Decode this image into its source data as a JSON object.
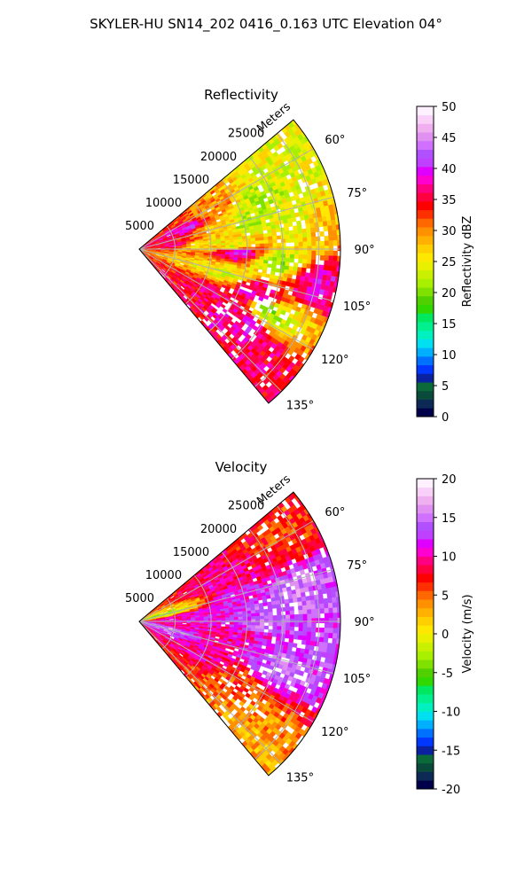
{
  "title": "SKYLER-HU  SN14_202  0416_0.163 UTC Elevation 04°",
  "chart_data": [
    {
      "type": "heatmap",
      "subtype": "polar-sector (PPI radar)",
      "title": "Reflectivity",
      "range_label": "Meters",
      "range_ticks": [
        5000,
        10000,
        15000,
        20000,
        25000
      ],
      "range_max": 28000,
      "azimuth_range": [
        50,
        140
      ],
      "azimuth_ticks": [
        "60°",
        "75°",
        "90°",
        "105°",
        "120°",
        "135°"
      ],
      "azimuth_tick_values": [
        60,
        75,
        90,
        105,
        120,
        135
      ],
      "grid": true,
      "colorbar": {
        "label": "Reflectivity dBZ",
        "min": 0,
        "max": 50,
        "ticks": [
          0,
          5,
          10,
          15,
          20,
          25,
          30,
          35,
          40,
          45,
          50
        ],
        "colors": [
          "#00004a",
          "#0c2a55",
          "#0a4a3a",
          "#0a6a3a",
          "#0a22a0",
          "#0038ff",
          "#0070ff",
          "#00b0ff",
          "#00e0f0",
          "#00f0c0",
          "#00f090",
          "#00e860",
          "#30d800",
          "#50d000",
          "#80e000",
          "#a8f000",
          "#c8f000",
          "#e8f000",
          "#ffe800",
          "#ffd000",
          "#ffb000",
          "#ff9000",
          "#ff6800",
          "#ff3000",
          "#ff0000",
          "#ff0040",
          "#ff0080",
          "#ff00d0",
          "#e000ff",
          "#c040ff",
          "#b050ff",
          "#d070ff",
          "#e090f0",
          "#f0b0f0",
          "#f8d0f8",
          "#fff0ff"
        ]
      },
      "cells": [
        {
          "az": 60,
          "r": 22000,
          "v": 24
        },
        {
          "az": 65,
          "r": 18000,
          "v": 22
        },
        {
          "az": 62,
          "r": 12000,
          "v": 30
        },
        {
          "az": 67,
          "r": 7000,
          "v": 40
        },
        {
          "az": 70,
          "r": 5000,
          "v": 36
        },
        {
          "az": 72,
          "r": 10000,
          "v": 28
        },
        {
          "az": 75,
          "r": 16000,
          "v": 22
        },
        {
          "az": 78,
          "r": 22000,
          "v": 24
        },
        {
          "az": 80,
          "r": 26000,
          "v": 28
        },
        {
          "az": 82,
          "r": 4000,
          "v": 36
        },
        {
          "az": 85,
          "r": 9000,
          "v": 26
        },
        {
          "az": 88,
          "r": 13000,
          "v": 24
        },
        {
          "az": 91,
          "r": 13500,
          "v": 40
        },
        {
          "az": 95,
          "r": 19000,
          "v": 22
        },
        {
          "az": 100,
          "r": 25000,
          "v": 38
        },
        {
          "az": 105,
          "r": 12000,
          "v": 24
        },
        {
          "az": 110,
          "r": 17000,
          "v": 38
        },
        {
          "az": 115,
          "r": 20000,
          "v": 22
        },
        {
          "az": 118,
          "r": 14000,
          "v": 36
        },
        {
          "az": 125,
          "r": 18000,
          "v": 38
        },
        {
          "az": 132,
          "r": 21000,
          "v": 36
        }
      ]
    },
    {
      "type": "heatmap",
      "subtype": "polar-sector (PPI radar)",
      "title": "Velocity",
      "range_label": "Meters",
      "range_ticks": [
        5000,
        10000,
        15000,
        20000,
        25000
      ],
      "range_max": 28000,
      "azimuth_range": [
        50,
        140
      ],
      "azimuth_ticks": [
        "60°",
        "75°",
        "90°",
        "105°",
        "120°",
        "135°"
      ],
      "azimuth_tick_values": [
        60,
        75,
        90,
        105,
        120,
        135
      ],
      "grid": true,
      "colorbar": {
        "label": "Velocity (m/s)",
        "min": -20,
        "max": 20,
        "ticks": [
          -20,
          -15,
          -10,
          -5,
          0,
          5,
          10,
          15,
          20
        ],
        "colors": [
          "#00004a",
          "#0c2a55",
          "#0a4a3a",
          "#0a6a3a",
          "#0a22a0",
          "#0038ff",
          "#0070ff",
          "#00b0ff",
          "#00e0f0",
          "#00f0c0",
          "#00f090",
          "#00e860",
          "#30d800",
          "#50d000",
          "#80e000",
          "#a8f000",
          "#c8f000",
          "#e8f000",
          "#ffe800",
          "#ffd000",
          "#ffb000",
          "#ff9000",
          "#ff6800",
          "#ff3000",
          "#ff0000",
          "#ff0040",
          "#ff0080",
          "#ff00d0",
          "#e000ff",
          "#c040ff",
          "#b050ff",
          "#d070ff",
          "#e090f0",
          "#f0b0f0",
          "#f8d0f8",
          "#fff0ff"
        ]
      },
      "cells": [
        {
          "az": 60,
          "r": 22000,
          "v": 6
        },
        {
          "az": 65,
          "r": 18000,
          "v": 9
        },
        {
          "az": 62,
          "r": 10000,
          "v": 10
        },
        {
          "az": 68,
          "r": 5000,
          "v": 2
        },
        {
          "az": 72,
          "r": 3000,
          "v": -3
        },
        {
          "az": 75,
          "r": 14000,
          "v": 12
        },
        {
          "az": 78,
          "r": 22000,
          "v": 15
        },
        {
          "az": 80,
          "r": 26000,
          "v": 14
        },
        {
          "az": 85,
          "r": 8000,
          "v": 11
        },
        {
          "az": 88,
          "r": 18000,
          "v": 14
        },
        {
          "az": 92,
          "r": 24000,
          "v": 13
        },
        {
          "az": 95,
          "r": 5000,
          "v": 10
        },
        {
          "az": 100,
          "r": 13000,
          "v": 10
        },
        {
          "az": 103,
          "r": 2500,
          "v": 15
        },
        {
          "az": 108,
          "r": 20000,
          "v": 14
        },
        {
          "az": 115,
          "r": 10000,
          "v": 10
        },
        {
          "az": 120,
          "r": 16000,
          "v": 6
        },
        {
          "az": 128,
          "r": 20000,
          "v": 4
        },
        {
          "az": 134,
          "r": 22000,
          "v": 3
        }
      ]
    }
  ]
}
